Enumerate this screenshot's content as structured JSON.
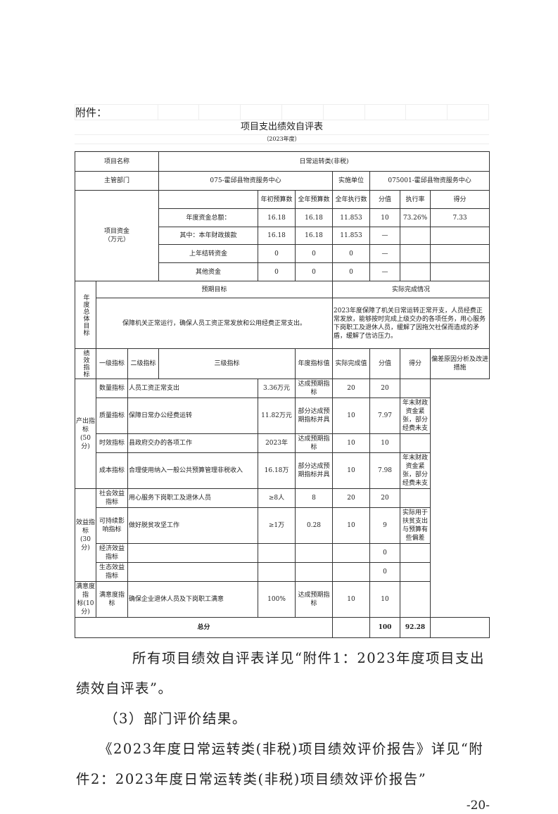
{
  "attachment_label": "附件：",
  "table_title": "项目支出绩效自评表",
  "table_year": "（2023年度）",
  "project": {
    "label": "项目名称",
    "value": "日常运转类(非税)"
  },
  "department": {
    "label": "主管部门",
    "value": "075-霍邱县物资服务中心",
    "unit_label": "实施单位",
    "unit_value": "075001-霍邱县物资服务中心"
  },
  "funds": {
    "label": "项目资金\n（万元）",
    "headers": [
      "年初预算数",
      "全年预算数",
      "全年执行数",
      "分值",
      "执行率",
      "得分"
    ],
    "rows": [
      {
        "name": "年度资金总额：",
        "initial": "16.18",
        "annual": "16.18",
        "executed": "11.853",
        "score_value": "10",
        "rate": "73.26%",
        "score": "7.33"
      },
      {
        "name": "其中：本年财政拨款",
        "initial": "16.18",
        "annual": "16.18",
        "executed": "11.853",
        "score_value": "—",
        "rate": "",
        "score": ""
      },
      {
        "name": "上年结转资金",
        "initial": "0",
        "annual": "0",
        "executed": "0",
        "score_value": "—",
        "rate": "",
        "score": ""
      },
      {
        "name": "其他资金",
        "initial": "0",
        "annual": "0",
        "executed": "0",
        "score_value": "—",
        "rate": "",
        "score": ""
      }
    ]
  },
  "goals": {
    "label": "年度总体目标",
    "expected_header": "预期目标",
    "actual_header": "实际完成情况",
    "expected": "保障机关正常运行，确保人员工资正常发放和公用经费正常支出。",
    "actual": "2023年度保障了机关日常运转正常开支，人员经费正常发放，能够按时完成上级交办的各项任务，用心服务下岗职工及退休人员，缓解了因拖欠社保而造成的矛盾，缓解了信访压力。"
  },
  "indicators": {
    "label": "绩效指标",
    "headers": [
      "一级指标",
      "二级指标",
      "三级指标",
      "年度指标值",
      "实际完成值",
      "分值",
      "得分",
      "偏差原因分析及改进措施"
    ],
    "groups": [
      {
        "name": "产出指标\n(50分)"
      },
      {
        "name": "效益指标\n(30分)"
      },
      {
        "name": "满意度指\n标(10分)"
      }
    ],
    "rows": [
      {
        "level2": "数量指标",
        "level3": "人员工资正常支出",
        "target": "3.36万元",
        "actual": "达成预期指标",
        "score_value": "20",
        "score": "20",
        "deviation": ""
      },
      {
        "level2": "质量指标",
        "level3": "保障日常办公经费运转",
        "target": "11.82万元",
        "actual": "部分达成预期指标并具",
        "score_value": "10",
        "score": "7.97",
        "deviation": "年末财政资金紧张，部分经费未支"
      },
      {
        "level2": "时效指标",
        "level3": "县政府交办的各项工作",
        "target": "2023年",
        "actual": "达成预期指标",
        "score_value": "10",
        "score": "10",
        "deviation": ""
      },
      {
        "level2": "成本指标",
        "level3": "合理使用纳入一般公共预算管理非税收入",
        "target": "16.18万",
        "actual": "部分达成预期指标并具",
        "score_value": "10",
        "score": "7.98",
        "deviation": "年末财政资金紧张，部分经费未支"
      },
      {
        "level2": "社会效益指标",
        "level3": "用心服务下岗职工及退休人员",
        "target": "≥8人",
        "actual": "8",
        "score_value": "20",
        "score": "20",
        "deviation": ""
      },
      {
        "level2": "可持续影响指标",
        "level3": "做好脱贫攻坚工作",
        "target": "≥1万",
        "actual": "0.28",
        "score_value": "10",
        "score": "9",
        "deviation": "实际用于扶贫支出与预算有些偏差"
      },
      {
        "level2": "经济效益指标",
        "level3": "",
        "target": "",
        "actual": "",
        "score_value": "",
        "score": "0",
        "deviation": ""
      },
      {
        "level2": "生态效益指标",
        "level3": "",
        "target": "",
        "actual": "",
        "score_value": "",
        "score": "0",
        "deviation": ""
      },
      {
        "level2": "满意度指标",
        "level3": "确保企业退休人员及下岗职工满意",
        "target": "100%",
        "actual": "达成预期指标",
        "score_value": "10",
        "score": "10",
        "deviation": ""
      }
    ]
  },
  "total": {
    "label": "总分",
    "score_value": "100",
    "score": "92.28"
  },
  "paragraphs": [
    "所有项目绩效自评表详见“附件1：2023年度项目支出绩效自评表”。",
    "（3）部门评价结果。",
    "《2023年度日常运转类(非税)项目绩效评价报告》详见“附件2：2023年度日常运转类(非税)项目绩效评价报告”"
  ],
  "page_number": "-20-"
}
